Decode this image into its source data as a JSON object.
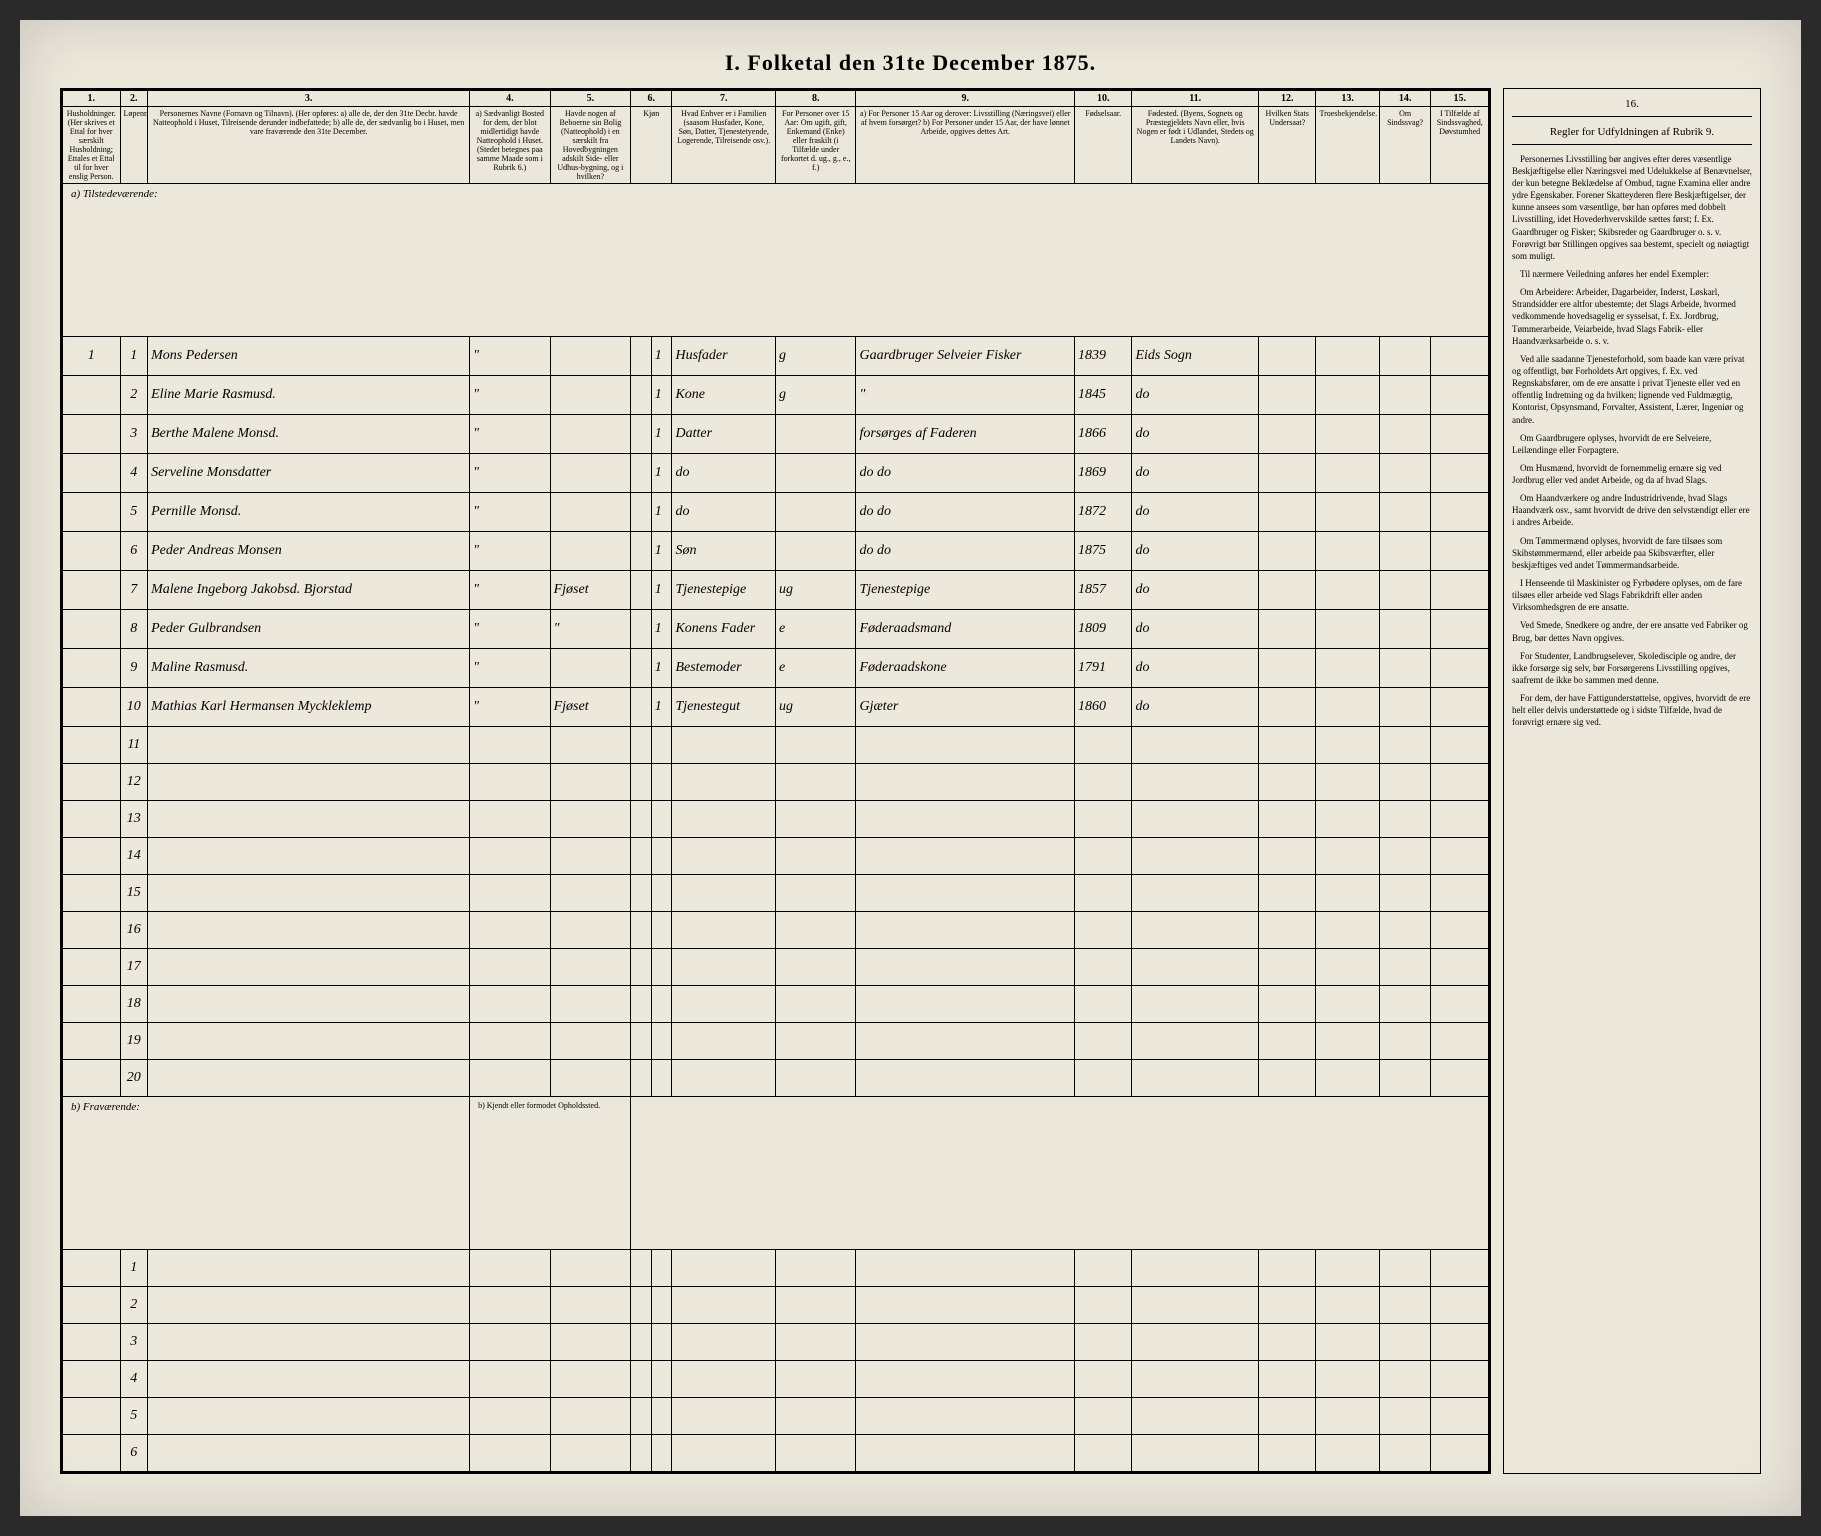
{
  "title": "I. Folketal den 31te December 1875.",
  "colnums": [
    "1.",
    "2.",
    "3.",
    "4.",
    "5.",
    "6.",
    "7.",
    "8.",
    "9.",
    "10.",
    "11.",
    "12.",
    "13.",
    "14.",
    "15."
  ],
  "headers": {
    "c1": "Husholdninger. (Her skrives et Ettal for hver særskilt Husholdning; Ettales et Ettal til for hver enslig Person.",
    "c2": "Løpenr.",
    "c3": "Personernes Navne (Fornavn og Tilnavn). (Her opføres: a) alle de, der den 31te Decbr. havde Natteophold i Huset, Tilreisende derunder indbefattede; b) alle de, der sædvanlig bo i Huset, men vare fraværende den 31te December.",
    "c4": "a) Sædvanligt Bosted for dem, der blot midlertidigt havde Natteophold i Huset. (Stedet betegnes paa samme Maade som i Rubrik 6.)",
    "c5": "Havde nogen af Beboerne sin Bolig (Natteophold) i en særskilt fra Hovedbygningen adskilt Side- eller Udhus-bygning, og i hvilken?",
    "c6": "Kjøn",
    "c7": "Hvad Enhver er i Familien (saasom Husfader, Kone, Søn, Datter, Tjenestetyende, Logerende, Tilreisende osv.).",
    "c8": "For Personer over 15 Aar: Om ugift, gift, Enkemand (Enke) eller fraskilt (i Tilfælde under forkortet d. ug., g., e., f.)",
    "c9": "a) For Personer 15 Aar og derover: Livsstilling (Næringsvei) eller af hvem forsørget? b) For Personer under 15 Aar, der have lønnet Arbeide, opgives dettes Art.",
    "c10": "Fødselsaar.",
    "c11": "Fødested. (Byens, Sognets og Præstegjeldets Navn eller, hvis Nogen er født i Udlandet, Stedets og Landets Navn).",
    "c12": "Hvilken Stats Undersaat?",
    "c13": "Troesbekjendelse.",
    "c14": "Om Sindssvag?",
    "c15": "I Tilfælde af Sindssvaghed, Døvstumhed"
  },
  "section_a": "a) Tilstedeværende:",
  "section_b": "b) Fraværende:",
  "section_b_col": "b) Kjendt eller formodet Opholdssted.",
  "rows": [
    {
      "n": "1",
      "hh": "1",
      "name": "Mons Pedersen",
      "c4": "\"",
      "c5": "",
      "c6": "1",
      "fam": "Husfader",
      "civ": "g",
      "occ": "Gaardbruger Selveier Fisker",
      "year": "1839",
      "place": "Eids Sogn"
    },
    {
      "n": "2",
      "hh": "",
      "name": "Eline Marie Rasmusd.",
      "c4": "\"",
      "c5": "",
      "c6": "1",
      "fam": "Kone",
      "civ": "g",
      "occ": "\"",
      "year": "1845",
      "place": "do"
    },
    {
      "n": "3",
      "hh": "",
      "name": "Berthe Malene Monsd.",
      "c4": "\"",
      "c5": "",
      "c6": "1",
      "fam": "Datter",
      "civ": "",
      "occ": "forsørges af Faderen",
      "year": "1866",
      "place": "do"
    },
    {
      "n": "4",
      "hh": "",
      "name": "Serveline Monsdatter",
      "c4": "\"",
      "c5": "",
      "c6": "1",
      "fam": "do",
      "civ": "",
      "occ": "do    do",
      "year": "1869",
      "place": "do"
    },
    {
      "n": "5",
      "hh": "",
      "name": "Pernille Monsd.",
      "c4": "\"",
      "c5": "",
      "c6": "1",
      "fam": "do",
      "civ": "",
      "occ": "do    do",
      "year": "1872",
      "place": "do"
    },
    {
      "n": "6",
      "hh": "",
      "name": "Peder Andreas Monsen",
      "c4": "\"",
      "c5": "",
      "c6": "1",
      "fam": "Søn",
      "civ": "",
      "occ": "do    do",
      "year": "1875",
      "place": "do"
    },
    {
      "n": "7",
      "hh": "",
      "name": "Malene Ingeborg Jakobsd. Bjorstad",
      "c4": "\"",
      "c5": "Fjøset",
      "c6": "1",
      "fam": "Tjenestepige",
      "civ": "ug",
      "occ": "Tjenestepige",
      "year": "1857",
      "place": "do"
    },
    {
      "n": "8",
      "hh": "",
      "name": "Peder Gulbrandsen",
      "c4": "\"",
      "c5": "\"",
      "c6": "1",
      "fam": "Konens Fader",
      "civ": "e",
      "occ": "Føderaadsmand",
      "year": "1809",
      "place": "do"
    },
    {
      "n": "9",
      "hh": "",
      "name": "Maline Rasmusd.",
      "c4": "\"",
      "c5": "",
      "c6": "1",
      "fam": "Bestemoder",
      "civ": "e",
      "occ": "Føderaadskone",
      "year": "1791",
      "place": "do"
    },
    {
      "n": "10",
      "hh": "",
      "name": "Mathias Karl Hermansen Myckleklemp",
      "c4": "\"",
      "c5": "Fjøset",
      "c6": "1",
      "fam": "Tjenestegut",
      "civ": "ug",
      "occ": "Gjæter",
      "year": "1860",
      "place": "do"
    }
  ],
  "empty_a": [
    "11",
    "12",
    "13",
    "14",
    "15",
    "16",
    "17",
    "18",
    "19",
    "20"
  ],
  "empty_b": [
    "1",
    "2",
    "3",
    "4",
    "5",
    "6"
  ],
  "regler": {
    "title": "16.",
    "subtitle": "Regler for Udfyldningen af Rubrik 9.",
    "paras": [
      "Personernes Livsstilling bør angives efter deres væsentlige Beskjæftigelse eller Næringsvei med Udelukkelse af Benævnelser, der kun betegne Beklædelse af Ombud, tagne Examina eller andre ydre Egenskaber. Forener Skatteyderen flere Beskjæftigelser, der kunne ansees som væsentlige, bør han opføres med dobbelt Livsstilling, idet Hovederhvervskilde sættes først; f. Ex. Gaardbruger og Fisker; Skibsreder og Gaardbruger o. s. v. Forøvrigt bør Stillingen opgives saa bestemt, specielt og nøiagtigt som muligt.",
      "Til nærmere Veiledning anføres her endel Exempler:",
      "Om Arbeidere: Arbeider, Dagarbeider, Inderst, Løskarl, Strandsidder ere altfor ubestemte; det Slags Arbeide, hvormed vedkommende hovedsagelig er sysselsat, f. Ex. Jordbrug, Tømmerarbeide, Veiarbeide, hvad Slags Fabrik- eller Haandværksarbeide o. s. v.",
      "Ved alle saadanne Tjenesteforhold, som baade kan være privat og offentligt, bør Forholdets Art opgives, f. Ex. ved Regnskabsfører, om de ere ansatte i privat Tjeneste eller ved en offentlig Indretning og da hvilken; lignende ved Fuldmægtig, Kontorist, Opsynsmand, Forvalter, Assistent, Lærer, Ingeniør og andre.",
      "Om Gaardbrugere oplyses, hvorvidt de ere Selveiere, Leilændinge eller Forpagtere.",
      "Om Husmænd, hvorvidt de fornemmelig ernære sig ved Jordbrug eller ved andet Arbeide, og da af hvad Slags.",
      "Om Haandværkere og andre Industridrivende, hvad Slags Haandværk osv., samt hvorvidt de drive den selvstændigt eller ere i andres Arbeide.",
      "Om Tømmermænd oplyses, hvorvidt de fare tilsøes som Skibstømmermænd, eller arbeide paa Skibsværfter, eller beskjæftiges ved andet Tømmermandsarbeide.",
      "I Henseende til Maskinister og Fyrbødere oplyses, om de fare tilsøes eller arbeide ved Slags Fabrikdrift eller anden Virksomhedsgren de ere ansatte.",
      "Ved Smede, Snedkere og andre, der ere ansatte ved Fabriker og Brug, bør dettes Navn opgives.",
      "For Studenter, Landbrugselever, Skoledisciple og andre, der ikke forsørge sig selv, bør Forsørgerens Livsstilling opgives, saafremt de ikke bo sammen med denne.",
      "For dem, der have Fattigunderstøttelse, opgives, hvorvidt de ere helt eller delvis understøttede og i sidste Tilfælde, hvad de forøvrigt ernære sig ved."
    ]
  },
  "col_widths": {
    "c1": "50px",
    "c2": "24px",
    "c3": "280px",
    "c4": "70px",
    "c5": "70px",
    "c6a": "18px",
    "c6b": "18px",
    "c7": "90px",
    "c8": "70px",
    "c9": "190px",
    "c10": "50px",
    "c11": "110px",
    "c12": "50px",
    "c13": "55px",
    "c14": "45px",
    "c15": "50px"
  }
}
